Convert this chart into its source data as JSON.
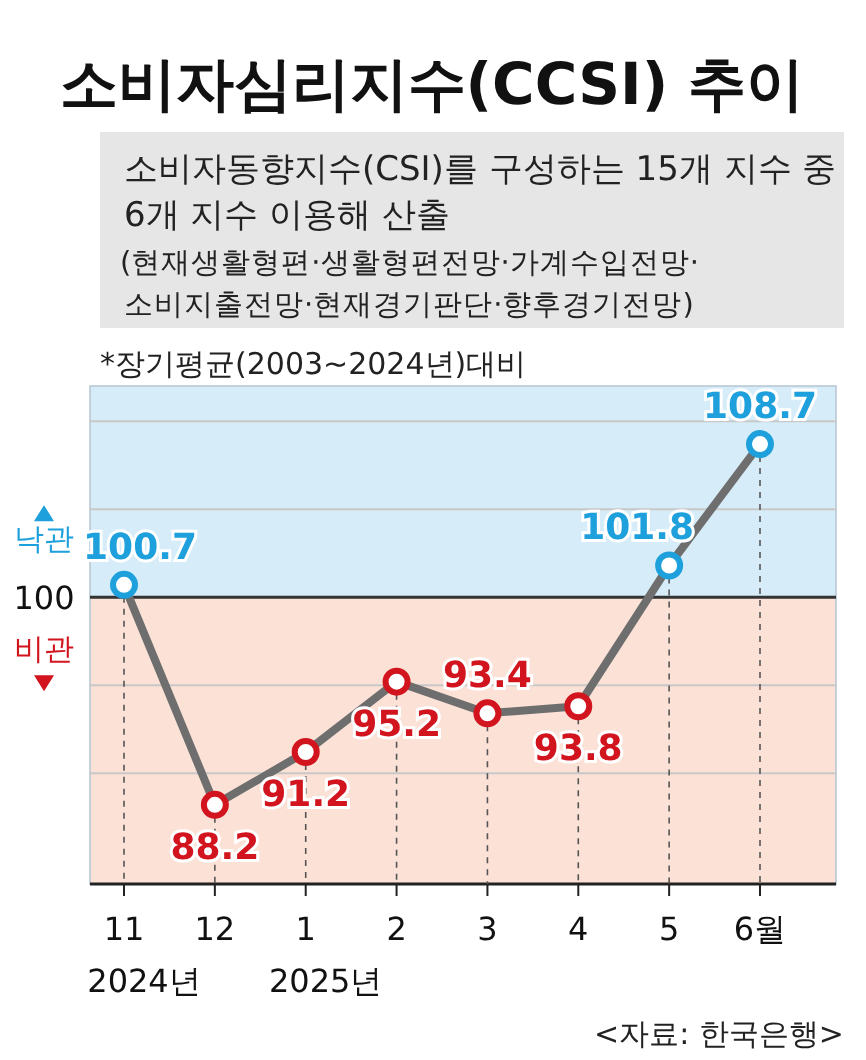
{
  "chart_data": {
    "type": "line",
    "title": "소비자심리지수(CCSI) 추이",
    "subtitle": "소비자동향지수(CSI)를 구성하는 15개 지수 중 6개 지수 이용해 산출 (현재생활형편·생활형편전망·가계수입전망·소비지출전망·현재경기판단·향후경기전망)",
    "categories": [
      "11",
      "12",
      "1",
      "2",
      "3",
      "4",
      "5",
      "6월"
    ],
    "series": [
      {
        "color": "#6e6e6e",
        "values": [
          100.7,
          88.2,
          91.2,
          95.2,
          93.4,
          93.8,
          101.8,
          108.7
        ],
        "colors": [
          "#1ea0dc",
          "#d2141e",
          "#d2141e",
          "#d2141e",
          "#d2141e",
          "#d2141e",
          "#1ea0dc",
          "#1ea0dc"
        ]
      }
    ],
    "data_labels": true,
    "marker": "circle",
    "grid": true,
    "yticks": [
      {
        "value": 90,
        "label": null
      },
      {
        "value": 95,
        "label": null
      },
      {
        "value": 100,
        "label": null
      },
      {
        "value": 105,
        "label": null
      },
      {
        "value": 110,
        "label": null
      }
    ],
    "tick_labels": "x",
    "ref_lines": [
      {
        "axis": "y",
        "value": 100,
        "label": "100",
        "color": "#333333"
      }
    ],
    "bands": [
      {
        "axis": "y",
        "from": 100,
        "to": 112,
        "label": "낙관",
        "color": "#d6ecf8"
      },
      {
        "axis": "y",
        "from": 83.7,
        "to": 100,
        "label": "비관",
        "color": "#fbe1d6"
      }
    ],
    "annotations": [
      "*장기평균(2003~2024년)대비",
      "2024년",
      "2025년",
      "<자료: 한국은행>"
    ]
  }
}
